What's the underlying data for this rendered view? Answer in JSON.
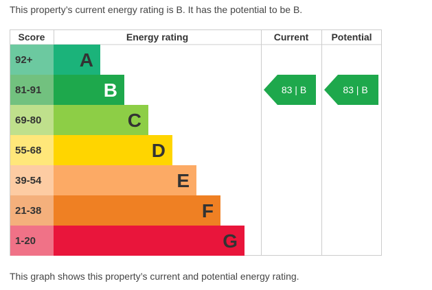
{
  "intro_text": "This property’s current energy rating is B. It has the potential to be B.",
  "outro_text": "This graph shows this property’s current and potential energy rating.",
  "chart_data": {
    "type": "bar",
    "headers": {
      "score": "Score",
      "rating": "Energy rating",
      "current": "Current",
      "potential": "Potential"
    },
    "bands": [
      {
        "letter": "A",
        "score": "92+",
        "length": 1,
        "color": "#1bb37a",
        "score_color": "#6cc9a0",
        "letter_color": "#333333"
      },
      {
        "letter": "B",
        "score": "81-91",
        "length": 2,
        "color": "#1ea84c",
        "score_color": "#72c17f",
        "letter_color": "#ffffff"
      },
      {
        "letter": "C",
        "score": "69-80",
        "length": 3,
        "color": "#8dce46",
        "score_color": "#bfe08c",
        "letter_color": "#333333"
      },
      {
        "letter": "D",
        "score": "55-68",
        "length": 4,
        "color": "#ffd500",
        "score_color": "#ffe77a",
        "letter_color": "#333333"
      },
      {
        "letter": "E",
        "score": "39-54",
        "length": 5,
        "color": "#fcaa65",
        "score_color": "#fdcca3",
        "letter_color": "#333333"
      },
      {
        "letter": "F",
        "score": "21-38",
        "length": 6,
        "color": "#ef8023",
        "score_color": "#f4b07c",
        "letter_color": "#333333"
      },
      {
        "letter": "G",
        "score": "1-20",
        "length": 7,
        "color": "#e9153b",
        "score_color": "#f07287",
        "letter_color": "#333333"
      }
    ],
    "current": {
      "score": 83,
      "band": "B",
      "label": "83 | B",
      "color": "#1ea84c"
    },
    "potential": {
      "score": 83,
      "band": "B",
      "label": "83 | B",
      "color": "#1ea84c"
    }
  }
}
